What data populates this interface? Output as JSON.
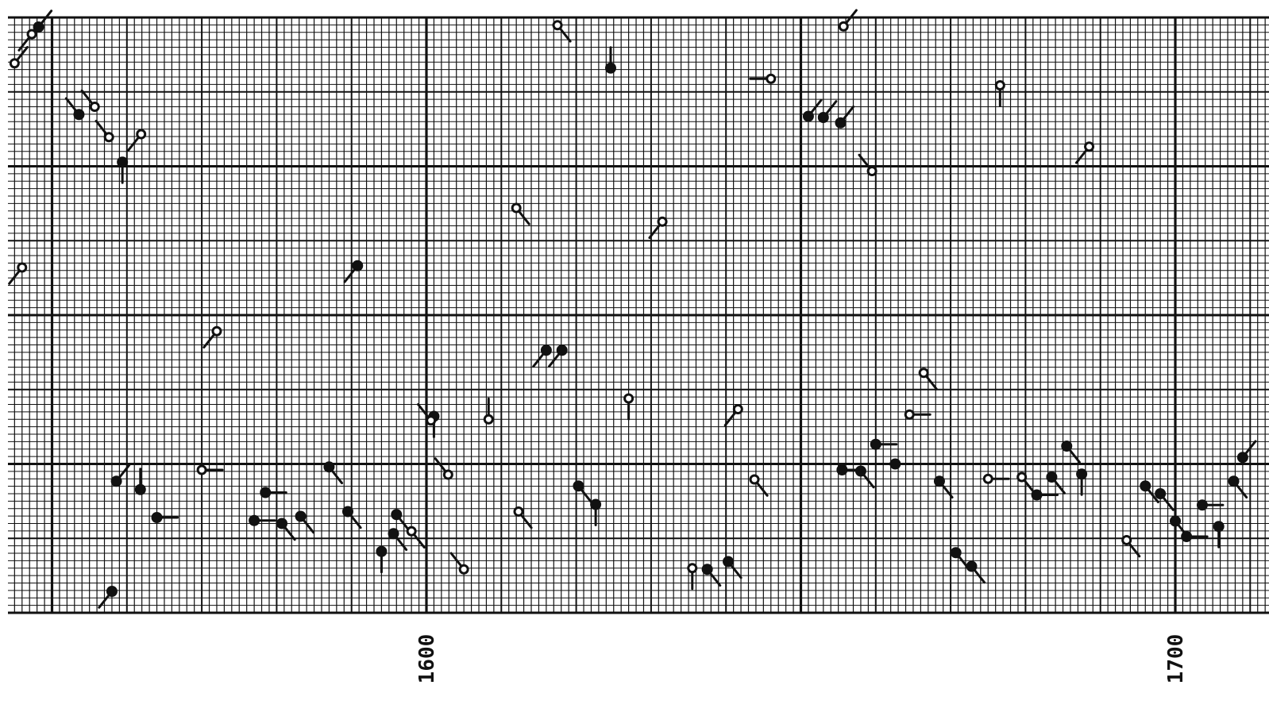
{
  "colors": {
    "ink": "#111111",
    "paper": "#ffffff"
  },
  "chart_data": {
    "type": "scatter",
    "title": "",
    "xlabel": "",
    "ylabel": "",
    "xlim": [
      1544,
      1718
    ],
    "ylim": [
      0,
      1
    ],
    "grid": true,
    "x_tick_labels": [
      {
        "x": 1600,
        "label": "1600"
      },
      {
        "x": 1700,
        "label": "1700"
      }
    ],
    "marker_styles": [
      "filled",
      "open"
    ],
    "points": [
      {
        "x": 1545.0,
        "y": 0.923,
        "style": "open",
        "tail": "ne"
      },
      {
        "x": 1547.3,
        "y": 0.972,
        "style": "open",
        "tail": "sw"
      },
      {
        "x": 1548.2,
        "y": 0.984,
        "style": "filled",
        "tail": "ne"
      },
      {
        "x": 1546.0,
        "y": 0.58,
        "style": "open",
        "tail": "sw"
      },
      {
        "x": 1553.6,
        "y": 0.837,
        "style": "filled",
        "tail": "nw"
      },
      {
        "x": 1555.7,
        "y": 0.85,
        "style": "open",
        "tail": "nw"
      },
      {
        "x": 1557.6,
        "y": 0.799,
        "style": "open",
        "tail": "nw"
      },
      {
        "x": 1559.4,
        "y": 0.757,
        "style": "filled",
        "tail": "s"
      },
      {
        "x": 1561.9,
        "y": 0.804,
        "style": "open",
        "tail": "sw"
      },
      {
        "x": 1590.8,
        "y": 0.583,
        "style": "filled",
        "tail": "sw"
      },
      {
        "x": 1572.0,
        "y": 0.473,
        "style": "open",
        "tail": "sw"
      },
      {
        "x": 1558.6,
        "y": 0.221,
        "style": "filled",
        "tail": "ne"
      },
      {
        "x": 1561.8,
        "y": 0.207,
        "style": "filled",
        "tail": "n"
      },
      {
        "x": 1564.0,
        "y": 0.16,
        "style": "filled",
        "tail": "e"
      },
      {
        "x": 1570.0,
        "y": 0.24,
        "style": "open",
        "tail": "e"
      },
      {
        "x": 1577.0,
        "y": 0.155,
        "style": "filled",
        "tail": "e"
      },
      {
        "x": 1578.5,
        "y": 0.202,
        "style": "filled",
        "tail": "e"
      },
      {
        "x": 1580.7,
        "y": 0.15,
        "style": "filled",
        "tail": "se"
      },
      {
        "x": 1583.2,
        "y": 0.162,
        "style": "filled",
        "tail": "se"
      },
      {
        "x": 1587.0,
        "y": 0.245,
        "style": "filled",
        "tail": "se"
      },
      {
        "x": 1589.5,
        "y": 0.17,
        "style": "filled",
        "tail": "se"
      },
      {
        "x": 1594.0,
        "y": 0.103,
        "style": "filled",
        "tail": "s"
      },
      {
        "x": 1596.0,
        "y": 0.165,
        "style": "filled",
        "tail": "se"
      },
      {
        "x": 1595.6,
        "y": 0.133,
        "style": "filled",
        "tail": "se"
      },
      {
        "x": 1598.0,
        "y": 0.137,
        "style": "open",
        "tail": "se"
      },
      {
        "x": 1602.9,
        "y": 0.232,
        "style": "open",
        "tail": "nw"
      },
      {
        "x": 1601.0,
        "y": 0.33,
        "style": "filled",
        "tail": "s"
      },
      {
        "x": 1600.6,
        "y": 0.323,
        "style": "open",
        "tail": "nw"
      },
      {
        "x": 1605.0,
        "y": 0.073,
        "style": "open",
        "tail": "nw"
      },
      {
        "x": 1558.0,
        "y": 0.036,
        "style": "filled",
        "tail": "sw"
      },
      {
        "x": 1612.0,
        "y": 0.68,
        "style": "open",
        "tail": "se"
      },
      {
        "x": 1608.3,
        "y": 0.325,
        "style": "open",
        "tail": "n"
      },
      {
        "x": 1612.3,
        "y": 0.17,
        "style": "open",
        "tail": "se"
      },
      {
        "x": 1616.0,
        "y": 0.441,
        "style": "filled",
        "tail": "sw"
      },
      {
        "x": 1618.1,
        "y": 0.441,
        "style": "filled",
        "tail": "sw"
      },
      {
        "x": 1617.5,
        "y": 0.987,
        "style": "open",
        "tail": "se"
      },
      {
        "x": 1624.6,
        "y": 0.915,
        "style": "filled",
        "tail": "n"
      },
      {
        "x": 1620.3,
        "y": 0.213,
        "style": "filled",
        "tail": "se"
      },
      {
        "x": 1622.6,
        "y": 0.182,
        "style": "filled",
        "tail": "s"
      },
      {
        "x": 1627.0,
        "y": 0.36,
        "style": "open",
        "tail": "s"
      },
      {
        "x": 1631.5,
        "y": 0.657,
        "style": "open",
        "tail": "sw"
      },
      {
        "x": 1635.5,
        "y": 0.075,
        "style": "open",
        "tail": "s"
      },
      {
        "x": 1637.5,
        "y": 0.073,
        "style": "filled",
        "tail": "se"
      },
      {
        "x": 1640.3,
        "y": 0.086,
        "style": "filled",
        "tail": "se"
      },
      {
        "x": 1646.0,
        "y": 0.897,
        "style": "open",
        "tail": "w"
      },
      {
        "x": 1641.6,
        "y": 0.342,
        "style": "open",
        "tail": "sw"
      },
      {
        "x": 1643.8,
        "y": 0.224,
        "style": "open",
        "tail": "se"
      },
      {
        "x": 1651.0,
        "y": 0.834,
        "style": "filled",
        "tail": "ne"
      },
      {
        "x": 1653.0,
        "y": 0.832,
        "style": "filled",
        "tail": "ne"
      },
      {
        "x": 1655.3,
        "y": 0.823,
        "style": "filled",
        "tail": "ne"
      },
      {
        "x": 1655.7,
        "y": 0.985,
        "style": "open",
        "tail": "ne"
      },
      {
        "x": 1659.5,
        "y": 0.742,
        "style": "open",
        "tail": "nw"
      },
      {
        "x": 1655.5,
        "y": 0.24,
        "style": "filled",
        "tail": "e"
      },
      {
        "x": 1658.0,
        "y": 0.238,
        "style": "filled",
        "tail": "se"
      },
      {
        "x": 1660.0,
        "y": 0.283,
        "style": "filled",
        "tail": "e"
      },
      {
        "x": 1662.6,
        "y": 0.25,
        "style": "filled",
        "tail": "e"
      },
      {
        "x": 1664.5,
        "y": 0.333,
        "style": "open",
        "tail": "e"
      },
      {
        "x": 1666.4,
        "y": 0.403,
        "style": "open",
        "tail": "se"
      },
      {
        "x": 1668.5,
        "y": 0.221,
        "style": "filled",
        "tail": "se"
      },
      {
        "x": 1670.7,
        "y": 0.101,
        "style": "filled",
        "tail": "se"
      },
      {
        "x": 1672.8,
        "y": 0.078,
        "style": "filled",
        "tail": "se"
      },
      {
        "x": 1676.6,
        "y": 0.886,
        "style": "open",
        "tail": "s"
      },
      {
        "x": 1675.0,
        "y": 0.225,
        "style": "open",
        "tail": "e"
      },
      {
        "x": 1679.5,
        "y": 0.228,
        "style": "open",
        "tail": "se"
      },
      {
        "x": 1681.5,
        "y": 0.198,
        "style": "filled",
        "tail": "e"
      },
      {
        "x": 1683.5,
        "y": 0.228,
        "style": "filled",
        "tail": "se"
      },
      {
        "x": 1685.5,
        "y": 0.28,
        "style": "filled",
        "tail": "se"
      },
      {
        "x": 1687.5,
        "y": 0.233,
        "style": "filled",
        "tail": "s"
      },
      {
        "x": 1688.5,
        "y": 0.783,
        "style": "open",
        "tail": "sw"
      },
      {
        "x": 1693.5,
        "y": 0.122,
        "style": "open",
        "tail": "se"
      },
      {
        "x": 1696.0,
        "y": 0.213,
        "style": "filled",
        "tail": "se"
      },
      {
        "x": 1698.0,
        "y": 0.2,
        "style": "filled",
        "tail": "se"
      },
      {
        "x": 1700.0,
        "y": 0.154,
        "style": "filled",
        "tail": "se"
      },
      {
        "x": 1701.5,
        "y": 0.128,
        "style": "filled",
        "tail": "e"
      },
      {
        "x": 1703.6,
        "y": 0.181,
        "style": "filled",
        "tail": "e"
      },
      {
        "x": 1705.8,
        "y": 0.145,
        "style": "filled",
        "tail": "s"
      },
      {
        "x": 1707.8,
        "y": 0.221,
        "style": "filled",
        "tail": "se"
      },
      {
        "x": 1709.0,
        "y": 0.261,
        "style": "filled",
        "tail": "ne"
      }
    ]
  }
}
